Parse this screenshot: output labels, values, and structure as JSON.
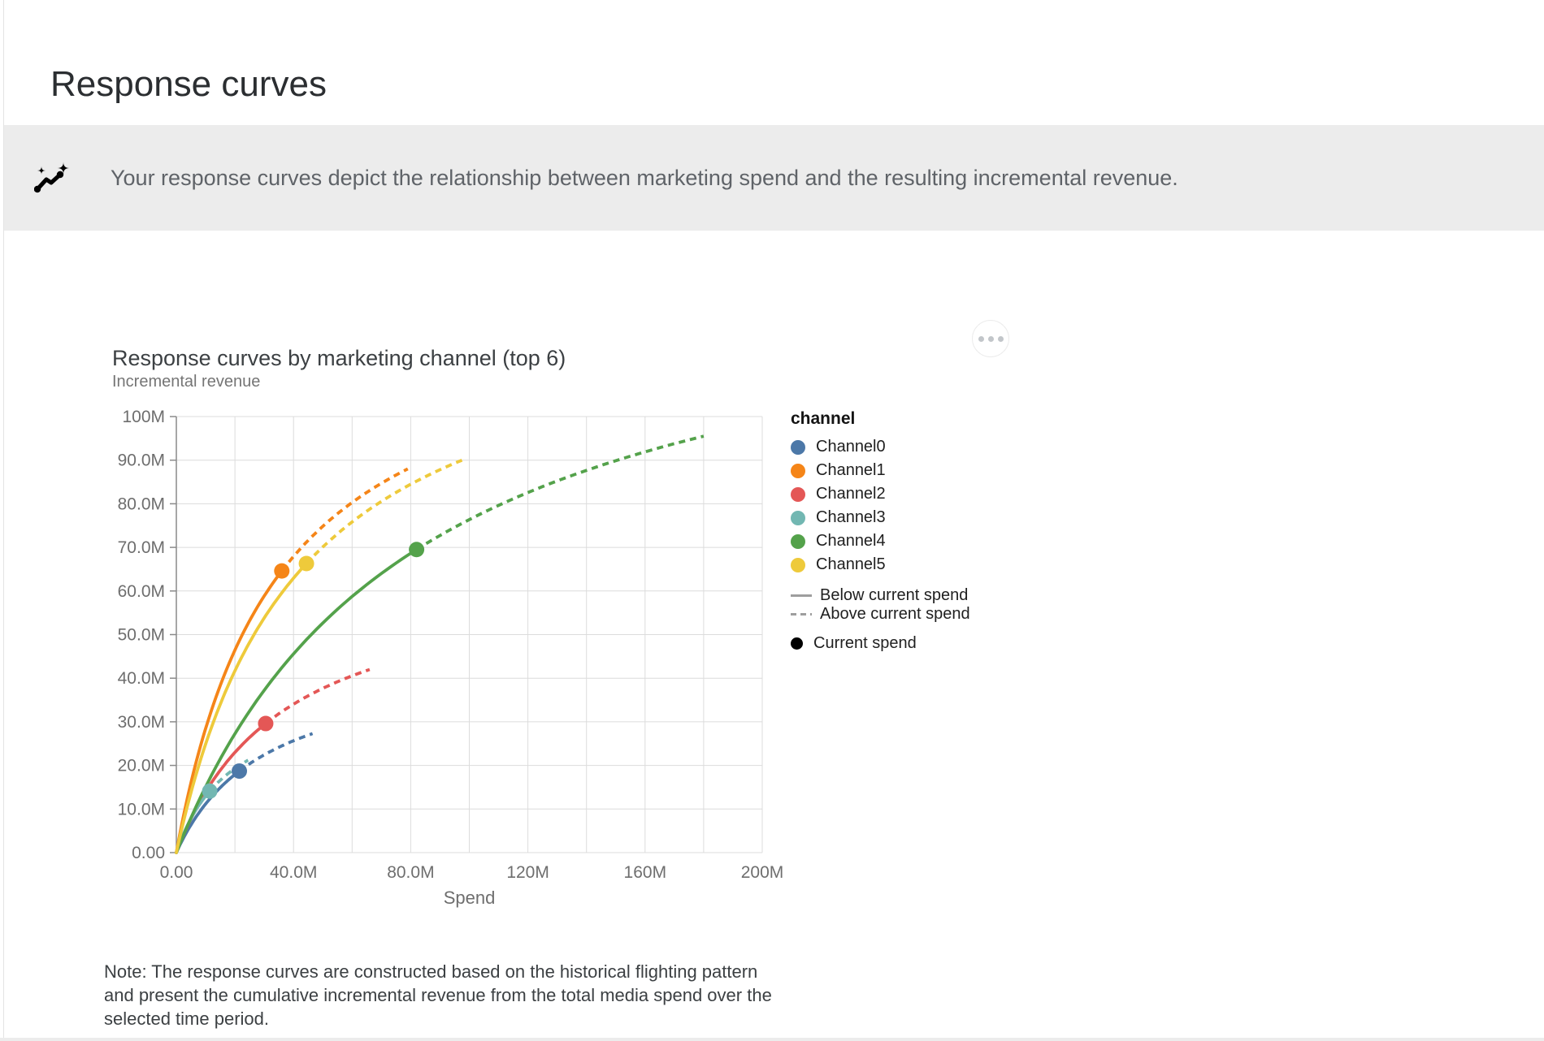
{
  "page": {
    "title": "Response curves",
    "banner": {
      "icon": "insights-sparkline-icon",
      "text": "Your response curves depict the relationship between marketing spend and the resulting incremental revenue."
    },
    "note": "Note: The response curves are constructed based on the historical flighting pattern\nand present the cumulative incremental revenue from the total media spend over the\nselected time period."
  },
  "chart_data": {
    "type": "line",
    "title": "Response curves by marketing channel (top 6)",
    "y_axis_title": "Incremental revenue",
    "x_axis_title": "Spend",
    "xlim": [
      0,
      200
    ],
    "ylim": [
      0,
      100
    ],
    "unit": "M",
    "grid": true,
    "x_grid_step": 20,
    "y_grid_step": 10,
    "x_ticks": [
      {
        "v": 0,
        "label": "0.00"
      },
      {
        "v": 40,
        "label": "40.0M"
      },
      {
        "v": 80,
        "label": "80.0M"
      },
      {
        "v": 120,
        "label": "120M"
      },
      {
        "v": 160,
        "label": "160M"
      },
      {
        "v": 200,
        "label": "200M"
      }
    ],
    "y_ticks": [
      {
        "v": 0,
        "label": "0.00"
      },
      {
        "v": 10,
        "label": "10.0M"
      },
      {
        "v": 20,
        "label": "20.0M"
      },
      {
        "v": 30,
        "label": "30.0M"
      },
      {
        "v": 40,
        "label": "40.0M"
      },
      {
        "v": 50,
        "label": "50.0M"
      },
      {
        "v": 60,
        "label": "60.0M"
      },
      {
        "v": 70,
        "label": "70.0M"
      },
      {
        "v": 80,
        "label": "80.0M"
      },
      {
        "v": 90,
        "label": "90.0M"
      },
      {
        "v": 100,
        "label": "100M"
      }
    ],
    "legend": {
      "title": "channel",
      "position": "right",
      "line_styles": [
        {
          "style": "solid",
          "label": "Below current spend"
        },
        {
          "style": "dashed",
          "label": "Above current spend"
        }
      ],
      "point_label": "Current spend"
    },
    "series": [
      {
        "name": "Channel0",
        "color": "#4C78A8",
        "origin": {
          "spend_m": 0,
          "revenue_m": 0
        },
        "current": {
          "spend_m": 21.5,
          "revenue_m": 18.7
        },
        "dashed_end": {
          "spend_m": 46.5,
          "revenue_m": 27.3
        }
      },
      {
        "name": "Channel1",
        "color": "#F58518",
        "origin": {
          "spend_m": 0,
          "revenue_m": 0
        },
        "current": {
          "spend_m": 36.0,
          "revenue_m": 64.6
        },
        "dashed_end": {
          "spend_m": 79.0,
          "revenue_m": 88.0
        }
      },
      {
        "name": "Channel2",
        "color": "#E45756",
        "origin": {
          "spend_m": 0,
          "revenue_m": 0
        },
        "current": {
          "spend_m": 30.5,
          "revenue_m": 29.6
        },
        "dashed_end": {
          "spend_m": 66.0,
          "revenue_m": 42.0
        }
      },
      {
        "name": "Channel3",
        "color": "#72B7B2",
        "origin": {
          "spend_m": 0,
          "revenue_m": 0
        },
        "current": {
          "spend_m": 11.4,
          "revenue_m": 14.1
        },
        "dashed_end": {
          "spend_m": 24.5,
          "revenue_m": 21.2
        }
      },
      {
        "name": "Channel4",
        "color": "#54A24B",
        "origin": {
          "spend_m": 0,
          "revenue_m": 0
        },
        "current": {
          "spend_m": 82.0,
          "revenue_m": 69.5
        },
        "dashed_end": {
          "spend_m": 180.0,
          "revenue_m": 95.5
        }
      },
      {
        "name": "Channel5",
        "color": "#EECA3B",
        "origin": {
          "spend_m": 0,
          "revenue_m": 0
        },
        "current": {
          "spend_m": 44.4,
          "revenue_m": 66.3
        },
        "dashed_end": {
          "spend_m": 97.5,
          "revenue_m": 90.0
        }
      }
    ],
    "style_colors": {
      "grid": "#dcdcdc",
      "axis_domain": "#8a8a8a",
      "tick_label": "#6e6e6e",
      "legend_swatch_line": "#9e9e9e",
      "current_spend_dot_legend": "#000000"
    }
  }
}
